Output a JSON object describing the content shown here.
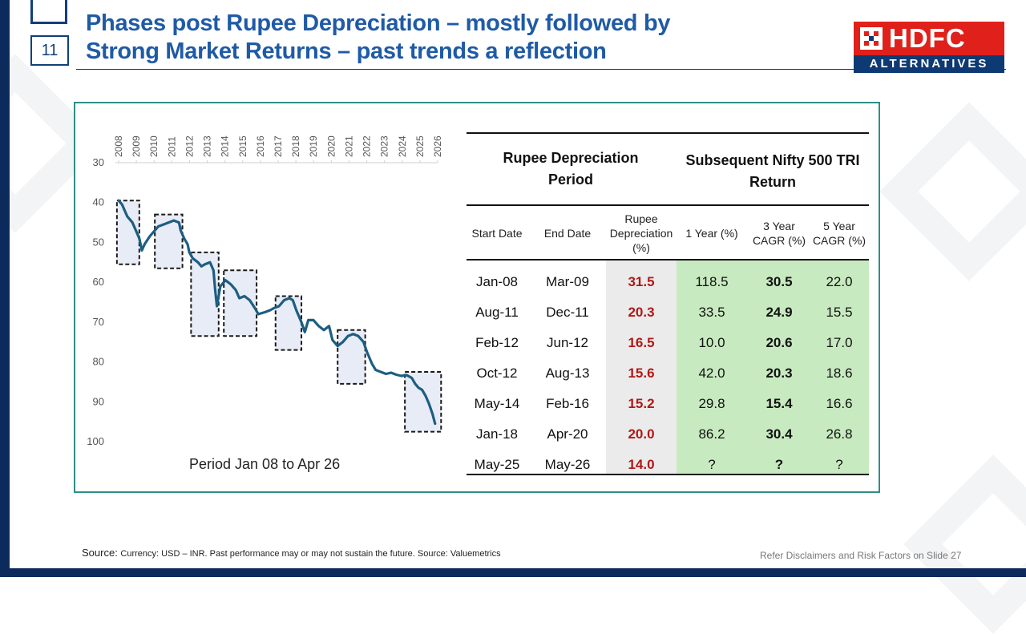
{
  "slide_number": "11",
  "title": {
    "line1": "Phases post Rupee Depreciation – mostly followed by",
    "line2": "Strong Market Returns – past trends a reflection"
  },
  "logo": {
    "top_text": "HDFC",
    "bottom_text": "ALTERNATIVES"
  },
  "chart_data": {
    "type": "line",
    "x_tick_labels": [
      "2008",
      "2009",
      "2010",
      "2011",
      "2012",
      "2013",
      "2014",
      "2015",
      "2016",
      "2017",
      "2018",
      "2019",
      "2020",
      "2021",
      "2022",
      "2023",
      "2024",
      "2025",
      "2026"
    ],
    "y_tick_labels": [
      "30",
      "40",
      "50",
      "60",
      "70",
      "80",
      "90",
      "100"
    ],
    "ylim": [
      100,
      30
    ],
    "y_inverted": true,
    "caption": "Period Jan 08 to Apr 26",
    "series": [
      {
        "x": [
          2008.0,
          2008.2,
          2008.5,
          2008.8,
          2009.0,
          2009.2,
          2009.35,
          2009.5,
          2009.8,
          2010.0,
          2010.3,
          2010.6,
          2010.9,
          2011.2,
          2011.5,
          2011.6,
          2011.8,
          2012.0,
          2012.1,
          2012.3,
          2012.6,
          2012.8,
          2013.0,
          2013.3,
          2013.5,
          2013.6,
          2013.7,
          2013.9,
          2014.2,
          2014.5,
          2014.8,
          2015.0,
          2015.3,
          2015.6,
          2015.9,
          2016.1,
          2016.5,
          2016.8,
          2017.0,
          2017.3,
          2017.6,
          2017.9,
          2018.1,
          2018.3,
          2018.6,
          2018.8,
          2019.0,
          2019.3,
          2019.6,
          2019.9,
          2020.2,
          2020.4,
          2020.7,
          2021.0,
          2021.3,
          2021.6,
          2021.9,
          2022.2,
          2022.4,
          2022.7,
          2022.9,
          2023.2,
          2023.5,
          2023.8,
          2024.1,
          2024.4,
          2024.7,
          2025.0,
          2025.2,
          2025.4,
          2025.6,
          2025.8,
          2026.0,
          2026.2,
          2026.35
        ],
        "y": [
          39.5,
          40.5,
          43.5,
          45,
          47,
          49,
          52,
          50.5,
          48.5,
          47.5,
          46,
          45.5,
          45,
          44.5,
          45,
          47,
          49,
          50.5,
          52.5,
          54,
          55,
          56,
          55.5,
          55,
          57,
          62,
          66,
          61,
          59.5,
          60.5,
          62,
          64,
          63.5,
          64.5,
          66.5,
          68,
          67.5,
          67,
          66.5,
          66,
          64.5,
          64,
          64.5,
          67,
          70,
          72.5,
          69.5,
          69.5,
          71,
          72,
          71,
          74.5,
          76,
          75,
          73.5,
          73,
          73.5,
          75,
          77.5,
          80.5,
          82,
          82.5,
          83,
          82.7,
          83.2,
          83.5,
          83.3,
          84,
          85.5,
          86.5,
          87,
          88.5,
          90.5,
          93,
          95.5
        ]
      }
    ],
    "boxes": [
      {
        "x0": 2007.9,
        "x1": 2009.2,
        "y0": 39.5,
        "y1": 55.5
      },
      {
        "x0": 2010.1,
        "x1": 2011.7,
        "y0": 43.0,
        "y1": 56.5
      },
      {
        "x0": 2012.2,
        "x1": 2013.8,
        "y0": 52.5,
        "y1": 73.5
      },
      {
        "x0": 2014.1,
        "x1": 2016.0,
        "y0": 57.0,
        "y1": 73.5
      },
      {
        "x0": 2017.1,
        "x1": 2018.6,
        "y0": 63.5,
        "y1": 77.0
      },
      {
        "x0": 2020.7,
        "x1": 2022.3,
        "y0": 72.0,
        "y1": 85.5
      },
      {
        "x0": 2024.6,
        "x1": 2026.7,
        "y0": 82.5,
        "y1": 97.5
      }
    ]
  },
  "table": {
    "group_headers": {
      "rupee_line1": "Rupee Depreciation",
      "rupee_line2": "Period",
      "nifty_line1": "Subsequent Nifty 500 TRI",
      "nifty_line2": "Return"
    },
    "columns": {
      "start": "Start Date",
      "end": "End Date",
      "dep_line1": "Rupee",
      "dep_line2": "Depreciation",
      "dep_line3": "(%)",
      "y1": "1 Year  (%)",
      "y3_line1": "3 Year",
      "y3_line2": "CAGR (%)",
      "y5_line1": "5 Year",
      "y5_line2": "CAGR (%)"
    },
    "rows": [
      {
        "start": "Jan-08",
        "end": "Mar-09",
        "dep": "31.5",
        "y1": "118.5",
        "y3": "30.5",
        "y5": "22.0"
      },
      {
        "start": "Aug-11",
        "end": "Dec-11",
        "dep": "20.3",
        "y1": "33.5",
        "y3": "24.9",
        "y5": "15.5"
      },
      {
        "start": "Feb-12",
        "end": "Jun-12",
        "dep": "16.5",
        "y1": "10.0",
        "y3": "20.6",
        "y5": "17.0"
      },
      {
        "start": "Oct-12",
        "end": "Aug-13",
        "dep": "15.6",
        "y1": "42.0",
        "y3": "20.3",
        "y5": "18.6"
      },
      {
        "start": "May-14",
        "end": "Feb-16",
        "dep": "15.2",
        "y1": "29.8",
        "y3": "15.4",
        "y5": "16.6"
      },
      {
        "start": "Jan-18",
        "end": "Apr-20",
        "dep": "20.0",
        "y1": "86.2",
        "y3": "30.4",
        "y5": "26.8"
      },
      {
        "start": "May-25",
        "end": "May-26",
        "dep": "14.0",
        "y1": "?",
        "y3": "?",
        "y5": "?"
      }
    ]
  },
  "footer": {
    "source_label": "Source: ",
    "source_text": "Currency: USD – INR. Past performance may or may not sustain the future. Source: Valuemetrics",
    "disclaimer": "Refer Disclaimers and Risk Factors on Slide 27"
  },
  "colors": {
    "navy": "#0d2a5c",
    "title_blue": "#1f5aa6",
    "line": "#1d5e82",
    "box_fill": "#e8ecf6",
    "panel_border": "#2e8e86",
    "dep_red": "#b01818",
    "green_bg": "#c8eac0",
    "logo_red": "#e0201b"
  }
}
